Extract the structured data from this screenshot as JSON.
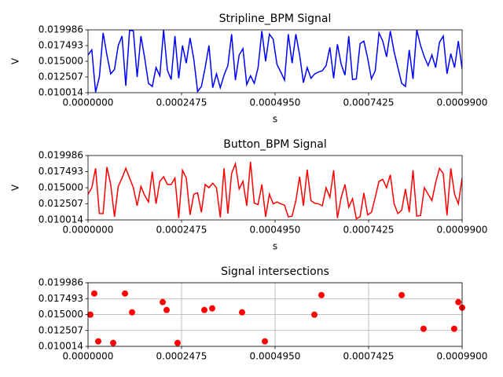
{
  "chart_data": [
    {
      "type": "line",
      "title": "Stripline_BPM Signal",
      "xlabel": "s",
      "ylabel": "V",
      "x": [
        0,
        1e-05,
        2e-05,
        3e-05,
        4e-05,
        5e-05,
        6e-05,
        7e-05,
        8e-05,
        9e-05,
        0.0001,
        0.00011,
        0.00012,
        0.00013,
        0.00014,
        0.00015,
        0.00016,
        0.00017,
        0.00018,
        0.00019,
        0.0002,
        0.00021,
        0.00022,
        0.00023,
        0.00024,
        0.00025,
        0.00026,
        0.00027,
        0.00028,
        0.00029,
        0.0003,
        0.00031,
        0.00032,
        0.00033,
        0.00034,
        0.00035,
        0.00036,
        0.00037,
        0.00038,
        0.00039,
        0.0004,
        0.00041,
        0.00042,
        0.00043,
        0.00044,
        0.00045,
        0.00046,
        0.00047,
        0.00048,
        0.00049,
        0.0005,
        0.00051,
        0.00052,
        0.00053,
        0.00054,
        0.00055,
        0.00056,
        0.00057,
        0.00058,
        0.00059,
        0.0006,
        0.00061,
        0.00062,
        0.00063,
        0.00064,
        0.00065,
        0.00066,
        0.00067,
        0.00068,
        0.00069,
        0.0007,
        0.00071,
        0.00072,
        0.00073,
        0.00074,
        0.00075,
        0.00076,
        0.00077,
        0.00078,
        0.00079,
        0.0008,
        0.00081,
        0.00082,
        0.00083,
        0.00084,
        0.00085,
        0.00086,
        0.00087,
        0.00088,
        0.00089,
        0.0009,
        0.00091,
        0.00092,
        0.00093,
        0.00094,
        0.00095,
        0.00096,
        0.00097,
        0.00098,
        0.00099
      ],
      "series": [
        {
          "name": "Stripline_BPM",
          "color": "#0000ff",
          "values": [
            0.016,
            0.0168,
            0.0101,
            0.0125,
            0.0195,
            0.016,
            0.013,
            0.0137,
            0.0175,
            0.019,
            0.0111,
            0.01998,
            0.0198,
            0.0125,
            0.019,
            0.0155,
            0.0115,
            0.011,
            0.014,
            0.0127,
            0.01998,
            0.0136,
            0.0121,
            0.019,
            0.0123,
            0.0175,
            0.0147,
            0.0187,
            0.0153,
            0.0102,
            0.011,
            0.014,
            0.0175,
            0.0108,
            0.013,
            0.0108,
            0.0128,
            0.0143,
            0.0193,
            0.012,
            0.016,
            0.017,
            0.0113,
            0.0127,
            0.0115,
            0.014,
            0.0198,
            0.015,
            0.0193,
            0.0185,
            0.0145,
            0.0133,
            0.012,
            0.0193,
            0.0147,
            0.0193,
            0.016,
            0.0116,
            0.014,
            0.0123,
            0.013,
            0.0133,
            0.0135,
            0.0143,
            0.0172,
            0.0123,
            0.0177,
            0.0145,
            0.0128,
            0.019,
            0.0121,
            0.0122,
            0.0178,
            0.0182,
            0.0155,
            0.0122,
            0.0135,
            0.0195,
            0.0182,
            0.0157,
            0.0198,
            0.0165,
            0.014,
            0.0115,
            0.011,
            0.0168,
            0.0122,
            0.01998,
            0.0175,
            0.0157,
            0.0143,
            0.016,
            0.014,
            0.018,
            0.019,
            0.013,
            0.0162,
            0.014,
            0.0182,
            0.0138
          ]
        }
      ],
      "xlim": [
        0,
        0.00099
      ],
      "xticks": [
        {
          "value": 0,
          "label": "0.0000000"
        },
        {
          "value": 0.0002475,
          "label": "0.0002475"
        },
        {
          "value": 0.000495,
          "label": "0.0004950"
        },
        {
          "value": 0.0007425,
          "label": "0.0007425"
        },
        {
          "value": 0.00099,
          "label": "0.0009900"
        }
      ],
      "ylim": [
        0.010014,
        0.019986
      ],
      "yticks": [
        0.010014,
        0.012507,
        {
          "value": 0.015,
          "label": "0.015000"
        },
        0.017493,
        0.019986
      ],
      "grid": false
    },
    {
      "type": "line",
      "title": "Button_BPM Signal",
      "xlabel": "s",
      "ylabel": "V",
      "x": [
        0,
        1e-05,
        2e-05,
        3e-05,
        4e-05,
        5e-05,
        6e-05,
        7e-05,
        8e-05,
        9e-05,
        0.0001,
        0.00011,
        0.00012,
        0.00013,
        0.00014,
        0.00015,
        0.00016,
        0.00017,
        0.00018,
        0.00019,
        0.0002,
        0.00021,
        0.00022,
        0.00023,
        0.00024,
        0.00025,
        0.00026,
        0.00027,
        0.00028,
        0.00029,
        0.0003,
        0.00031,
        0.00032,
        0.00033,
        0.00034,
        0.00035,
        0.00036,
        0.00037,
        0.00038,
        0.00039,
        0.0004,
        0.00041,
        0.00042,
        0.00043,
        0.00044,
        0.00045,
        0.00046,
        0.00047,
        0.00048,
        0.00049,
        0.0005,
        0.00051,
        0.00052,
        0.00053,
        0.00054,
        0.00055,
        0.00056,
        0.00057,
        0.00058,
        0.00059,
        0.0006,
        0.00061,
        0.00062,
        0.00063,
        0.00064,
        0.00065,
        0.00066,
        0.00067,
        0.00068,
        0.00069,
        0.0007,
        0.00071,
        0.00072,
        0.00073,
        0.00074,
        0.00075,
        0.00076,
        0.00077,
        0.00078,
        0.00079,
        0.0008,
        0.00081,
        0.00082,
        0.00083,
        0.00084,
        0.00085,
        0.00086,
        0.00087,
        0.00088,
        0.00089,
        0.0009,
        0.00091,
        0.00092,
        0.00093,
        0.00094,
        0.00095,
        0.00096,
        0.00097,
        0.00098,
        0.00099
      ],
      "series": [
        {
          "name": "Button_BPM",
          "color": "#ff0000",
          "values": [
            0.014,
            0.015,
            0.018,
            0.011,
            0.011,
            0.0182,
            0.0155,
            0.0105,
            0.0152,
            0.0165,
            0.018,
            0.0165,
            0.015,
            0.0122,
            0.0152,
            0.0138,
            0.0128,
            0.0175,
            0.0125,
            0.016,
            0.0167,
            0.0155,
            0.0155,
            0.0165,
            0.0103,
            0.0177,
            0.0165,
            0.0108,
            0.014,
            0.0142,
            0.0112,
            0.0155,
            0.015,
            0.0157,
            0.015,
            0.0104,
            0.018,
            0.011,
            0.0172,
            0.0187,
            0.0148,
            0.016,
            0.0122,
            0.019,
            0.0126,
            0.0124,
            0.0155,
            0.0105,
            0.014,
            0.0125,
            0.0128,
            0.0125,
            0.0123,
            0.0105,
            0.0106,
            0.013,
            0.0167,
            0.0122,
            0.0178,
            0.013,
            0.0126,
            0.0125,
            0.0122,
            0.015,
            0.0135,
            0.0177,
            0.0103,
            0.0135,
            0.0155,
            0.012,
            0.0133,
            0.0102,
            0.0105,
            0.0142,
            0.0108,
            0.0112,
            0.0135,
            0.016,
            0.0163,
            0.015,
            0.017,
            0.0125,
            0.011,
            0.0115,
            0.0148,
            0.0112,
            0.0177,
            0.0106,
            0.0107,
            0.015,
            0.014,
            0.013,
            0.0158,
            0.018,
            0.0172,
            0.0107,
            0.018,
            0.014,
            0.0125,
            0.0165
          ]
        }
      ],
      "xlim": [
        0,
        0.00099
      ],
      "xticks": [
        {
          "value": 0,
          "label": "0.0000000"
        },
        {
          "value": 0.0002475,
          "label": "0.0002475"
        },
        {
          "value": 0.000495,
          "label": "0.0004950"
        },
        {
          "value": 0.0007425,
          "label": "0.0007425"
        },
        {
          "value": 0.00099,
          "label": "0.0009900"
        }
      ],
      "ylim": [
        0.010014,
        0.019986
      ],
      "yticks": [
        0.010014,
        0.012507,
        {
          "value": 0.015,
          "label": "0.015000"
        },
        0.017493,
        0.019986
      ],
      "grid": false
    },
    {
      "type": "scatter",
      "title": "Signal intersections",
      "x": [
        6.2e-06,
        1.66e-05,
        2.7e-05,
        6.66e-05,
        9.78e-05,
        0.0001165,
        0.0001976,
        0.000208,
        0.000237,
        0.0003078,
        0.0003286,
        0.0004076,
        0.000468,
        0.000599,
        0.0006177,
        0.00083,
        0.000888,
        0.000969,
        0.00098,
        0.00099
      ],
      "series": [
        {
          "name": "intersections",
          "color": "#ff0000",
          "values": [
            0.01498,
            0.0183,
            0.0108,
            0.01055,
            0.0183,
            0.01535,
            0.01695,
            0.01572,
            0.01055,
            0.01572,
            0.01597,
            0.01535,
            0.0108,
            0.01498,
            0.01805,
            0.01805,
            0.01277,
            0.01277,
            0.01695,
            0.01609
          ]
        }
      ],
      "xlim": [
        0,
        0.00099
      ],
      "xticks": [
        {
          "value": 0,
          "label": "0.0000000"
        },
        {
          "value": 0.0002475,
          "label": "0.0002475"
        },
        {
          "value": 0.000495,
          "label": "0.0004950"
        },
        {
          "value": 0.0007425,
          "label": "0.0007425"
        },
        {
          "value": 0.00099,
          "label": "0.0009900"
        }
      ],
      "ylim": [
        0.010014,
        0.019986
      ],
      "yticks": [
        0.010014,
        0.012507,
        {
          "value": 0.015,
          "label": "0.015000"
        },
        0.017493,
        0.019986
      ],
      "grid": true
    }
  ]
}
